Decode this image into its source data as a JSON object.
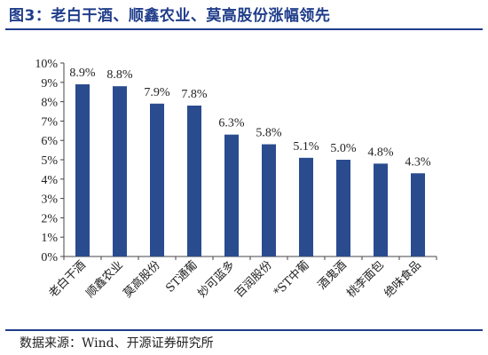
{
  "figure_title": "图3：老白干酒、顺鑫农业、莫高股份涨幅领先",
  "source_note": "数据来源：Wind、开源证券研究所",
  "colors": {
    "bar": "#2a4c8f",
    "title": "#1f3d8a",
    "axis": "#444444",
    "text": "#222222"
  },
  "chart_data": {
    "type": "bar",
    "categories": [
      "老白干酒",
      "顺鑫农业",
      "莫高股份",
      "ST通葡",
      "妙可蓝多",
      "百润股份",
      "*ST中葡",
      "酒鬼酒",
      "桃李面包",
      "绝味食品"
    ],
    "values": [
      8.9,
      8.8,
      7.9,
      7.8,
      6.3,
      5.8,
      5.1,
      5.0,
      4.8,
      4.3
    ],
    "data_labels": [
      "8.9%",
      "8.8%",
      "7.9%",
      "7.8%",
      "6.3%",
      "5.8%",
      "5.1%",
      "5.0%",
      "4.8%",
      "4.3%"
    ],
    "y_ticks": [
      "0%",
      "1%",
      "2%",
      "3%",
      "4%",
      "5%",
      "6%",
      "7%",
      "8%",
      "9%",
      "10%"
    ],
    "ylim": [
      0,
      10
    ],
    "grid": false,
    "legend": false
  }
}
